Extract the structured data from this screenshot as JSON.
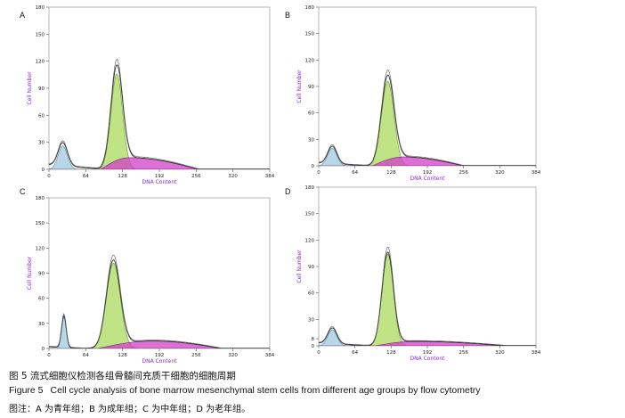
{
  "chart_data": [
    {
      "type": "area",
      "panel_label": "A",
      "xlabel": "DNA Content",
      "ylabel": "Cell Number",
      "xlim": [
        0,
        384
      ],
      "ylim": [
        0,
        180
      ],
      "x_ticks": [
        "0",
        "64",
        "128",
        "192",
        "256",
        "320",
        "384"
      ],
      "y_ticks": [
        "0",
        "30",
        "60",
        "90",
        "120",
        "150",
        "180"
      ],
      "peaks": {
        "g1": {
          "center": 24,
          "height": 26,
          "width": 8
        },
        "g2": {
          "center": 118,
          "height": 106,
          "width": 10
        },
        "s": {
          "start": 90,
          "end": 260,
          "height": 13,
          "peak_at": 140
        },
        "debris": {
          "height": 5,
          "end": 100
        }
      }
    },
    {
      "type": "area",
      "panel_label": "B",
      "xlabel": "DNA Content",
      "ylabel": "Cell Number",
      "xlim": [
        0,
        384
      ],
      "ylim": [
        0,
        180
      ],
      "x_ticks": [
        "0",
        "64",
        "128",
        "192",
        "256",
        "320",
        "384"
      ],
      "y_ticks": [
        "0",
        "30",
        "60",
        "90",
        "120",
        "150",
        "180"
      ],
      "peaks": {
        "g1": {
          "center": 24,
          "height": 20,
          "width": 8
        },
        "g2": {
          "center": 122,
          "height": 96,
          "width": 11
        },
        "s": {
          "start": 95,
          "end": 255,
          "height": 10,
          "peak_at": 150
        },
        "debris": {
          "height": 3,
          "end": 90
        }
      }
    },
    {
      "type": "area",
      "panel_label": "C",
      "xlabel": "DNA Content",
      "ylabel": "Cell Number",
      "xlim": [
        0,
        384
      ],
      "ylim": [
        0,
        180
      ],
      "x_ticks": [
        "0",
        "64",
        "128",
        "192",
        "256",
        "320",
        "384"
      ],
      "y_ticks": [
        "0",
        "30",
        "60",
        "90",
        "120",
        "150",
        "180"
      ],
      "peaks": {
        "g1": {
          "center": 26,
          "height": 38,
          "width": 4
        },
        "g2": {
          "center": 112,
          "height": 102,
          "width": 12
        },
        "s": {
          "start": 85,
          "end": 300,
          "height": 9,
          "peak_at": 180
        },
        "debris": {
          "height": 2,
          "end": 60
        }
      }
    },
    {
      "type": "area",
      "panel_label": "D",
      "xlabel": "DNA Content",
      "ylabel": "Cell Number",
      "xlim": [
        0,
        384
      ],
      "ylim": [
        0,
        180
      ],
      "x_ticks": [
        "0",
        "64",
        "128",
        "192",
        "256",
        "320",
        "384"
      ],
      "y_ticks": [
        "0",
        "8",
        "30",
        "60",
        "90",
        "120",
        "150",
        "180"
      ],
      "peaks": {
        "g1": {
          "center": 24,
          "height": 18,
          "width": 8
        },
        "g2": {
          "center": 122,
          "height": 104,
          "width": 10
        },
        "s": {
          "start": 100,
          "end": 330,
          "height": 5,
          "peak_at": 170
        },
        "debris": {
          "height": 3,
          "end": 90
        }
      }
    }
  ],
  "caption": {
    "cn": "图 5   流式细胞仪检测各组骨髓间充质干细胞的细胞周期",
    "en_fig": "Figure 5",
    "en": "Cell cycle analysis of bone marrow mesenchymal stem cells from different age groups by flow cytometry",
    "note": "图注：A 为青年组；B 为成年组；C 为中年组；D 为老年组。"
  },
  "colors": {
    "g1_fill": "#b8d8e8",
    "g2_fill": "#b8e078",
    "s_fill": "#d040c8",
    "envelope": "#333333",
    "axis_label": "#8a2be2"
  }
}
